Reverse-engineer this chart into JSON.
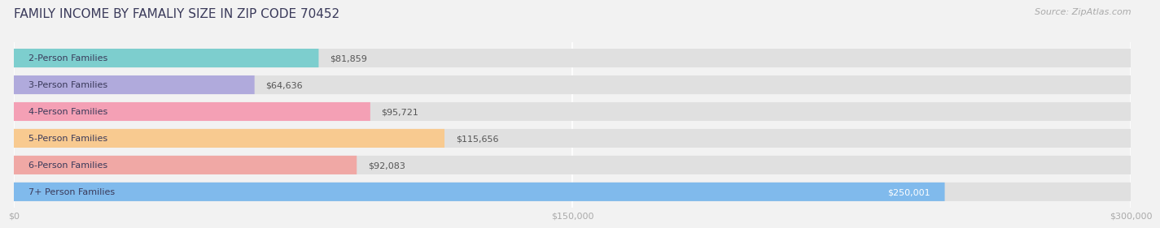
{
  "title": "FAMILY INCOME BY FAMALIY SIZE IN ZIP CODE 70452",
  "source": "Source: ZipAtlas.com",
  "categories": [
    "2-Person Families",
    "3-Person Families",
    "4-Person Families",
    "5-Person Families",
    "6-Person Families",
    "7+ Person Families"
  ],
  "values": [
    81859,
    64636,
    95721,
    115656,
    92083,
    250001
  ],
  "bar_colors": [
    "#7DCECE",
    "#B0AADC",
    "#F4A0B5",
    "#F8CA90",
    "#F0A8A5",
    "#80BAEC"
  ],
  "bar_labels": [
    "$81,859",
    "$64,636",
    "$95,721",
    "$115,656",
    "$92,083",
    "$250,001"
  ],
  "label_inside": [
    false,
    false,
    false,
    false,
    false,
    true
  ],
  "xlim": [
    0,
    300000
  ],
  "xticks": [
    0,
    150000,
    300000
  ],
  "xticklabels": [
    "$0",
    "$150,000",
    "$300,000"
  ],
  "bg_color": "#f2f2f2",
  "bar_bg_color": "#e0e0e0",
  "title_color": "#3a3a5a",
  "tick_color": "#aaaaaa",
  "label_color_outside": "#555555",
  "label_color_inside": "#ffffff",
  "source_color": "#aaaaaa",
  "title_fontsize": 11,
  "source_fontsize": 8,
  "bar_label_fontsize": 8,
  "category_fontsize": 8,
  "tick_fontsize": 8
}
